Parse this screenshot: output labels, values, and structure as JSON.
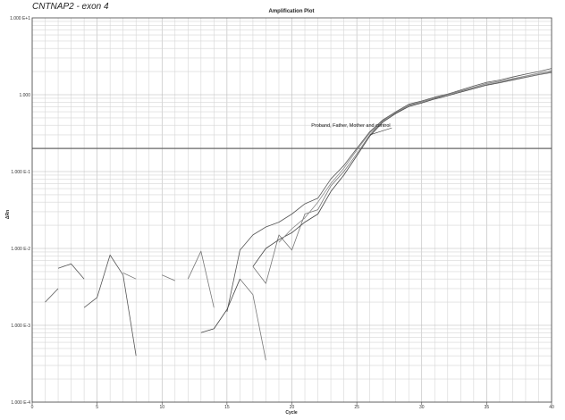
{
  "figure_title": "CNTNAP2 - exon 4",
  "chart_data": {
    "type": "line",
    "title": "Amplification Plot",
    "xlabel": "Cycle",
    "ylabel": "ΔRn",
    "xlim": [
      0,
      40
    ],
    "ylim": [
      0.0001,
      10
    ],
    "yscale": "log",
    "grid": true,
    "x_ticks": [
      0,
      5,
      10,
      15,
      20,
      25,
      30,
      35,
      40
    ],
    "x_tick_labels": [
      "0",
      "5",
      "10",
      "15",
      "20",
      "25",
      "30",
      "35",
      "40"
    ],
    "y_ticks": [
      10,
      1,
      0.1,
      0.01,
      0.001,
      0.0001
    ],
    "y_tick_labels": [
      "1.000 E+1",
      "1.000",
      "1.000 E-1",
      "1.000 E-2",
      "1.000 E-3",
      "1.000 E-4"
    ],
    "threshold": 0.2,
    "annotation": {
      "text": "Proband, Father, Mother and control",
      "points_to": [
        26,
        0.3
      ],
      "text_at": [
        21.5,
        0.38
      ]
    },
    "series": [
      {
        "color": "#555555",
        "segments": [
          [
            [
              1,
              0.002
            ],
            [
              2,
              0.003
            ]
          ],
          [
            [
              2,
              0.0055
            ],
            [
              3,
              0.0063
            ],
            [
              4,
              0.004
            ]
          ],
          [
            [
              4,
              0.0017
            ],
            [
              5,
              0.0023
            ],
            [
              6,
              0.0082
            ],
            [
              7,
              0.0045
            ],
            [
              8,
              0.0004
            ]
          ],
          [
            [
              15,
              0.0015
            ],
            [
              16,
              0.0095
            ],
            [
              17,
              0.015
            ],
            [
              18,
              0.019
            ],
            [
              19,
              0.022
            ],
            [
              20,
              0.028
            ],
            [
              21,
              0.038
            ],
            [
              22,
              0.045
            ],
            [
              23,
              0.08
            ],
            [
              24,
              0.12
            ],
            [
              25,
              0.2
            ],
            [
              26,
              0.33
            ],
            [
              27,
              0.47
            ],
            [
              28,
              0.6
            ],
            [
              29,
              0.75
            ],
            [
              30,
              0.83
            ],
            [
              31,
              0.93
            ],
            [
              32,
              1.02
            ],
            [
              33,
              1.15
            ],
            [
              34,
              1.3
            ],
            [
              35,
              1.45
            ],
            [
              36,
              1.55
            ],
            [
              37,
              1.7
            ],
            [
              38,
              1.85
            ],
            [
              39,
              2.0
            ],
            [
              40,
              2.2
            ]
          ]
        ]
      },
      {
        "color": "#777777",
        "segments": [
          [
            [
              7,
              0.0048
            ],
            [
              8,
              0.004
            ]
          ],
          [
            [
              10,
              0.0045
            ],
            [
              11,
              0.0038
            ]
          ],
          [
            [
              12,
              0.004
            ],
            [
              13,
              0.0092
            ],
            [
              14,
              0.0017
            ]
          ],
          [
            [
              16,
              0.004
            ],
            [
              17,
              0.0025
            ],
            [
              18,
              0.00035
            ]
          ],
          [
            [
              17,
              0.0058
            ],
            [
              18,
              0.0035
            ],
            [
              19,
              0.015
            ],
            [
              20,
              0.0095
            ],
            [
              21,
              0.028
            ],
            [
              22,
              0.032
            ],
            [
              23,
              0.065
            ],
            [
              24,
              0.1
            ],
            [
              25,
              0.17
            ],
            [
              26,
              0.3
            ],
            [
              27,
              0.46
            ],
            [
              28,
              0.58
            ],
            [
              29,
              0.72
            ],
            [
              30,
              0.8
            ],
            [
              31,
              0.9
            ],
            [
              32,
              1.0
            ],
            [
              33,
              1.12
            ],
            [
              34,
              1.25
            ],
            [
              35,
              1.4
            ],
            [
              36,
              1.5
            ],
            [
              37,
              1.62
            ],
            [
              38,
              1.75
            ],
            [
              39,
              1.9
            ],
            [
              40,
              2.05
            ]
          ]
        ]
      },
      {
        "color": "#444444",
        "segments": [
          [
            [
              13,
              0.0008
            ],
            [
              14,
              0.0009
            ],
            [
              15,
              0.0016
            ],
            [
              16,
              0.004
            ]
          ],
          [
            [
              17,
              0.0058
            ],
            [
              18,
              0.01
            ],
            [
              19,
              0.013
            ],
            [
              20,
              0.016
            ],
            [
              21,
              0.022
            ],
            [
              22,
              0.028
            ],
            [
              23,
              0.055
            ],
            [
              24,
              0.09
            ],
            [
              25,
              0.16
            ],
            [
              26,
              0.29
            ],
            [
              27,
              0.44
            ],
            [
              28,
              0.57
            ],
            [
              29,
              0.7
            ],
            [
              30,
              0.78
            ],
            [
              31,
              0.88
            ],
            [
              32,
              0.97
            ],
            [
              33,
              1.08
            ],
            [
              34,
              1.2
            ],
            [
              35,
              1.33
            ],
            [
              36,
              1.43
            ],
            [
              37,
              1.55
            ],
            [
              38,
              1.68
            ],
            [
              39,
              1.82
            ],
            [
              40,
              1.95
            ]
          ]
        ]
      },
      {
        "color": "#888888",
        "segments": [
          [
            [
              19,
              0.012
            ],
            [
              20,
              0.018
            ],
            [
              21,
              0.025
            ],
            [
              22,
              0.04
            ],
            [
              23,
              0.07
            ],
            [
              24,
              0.11
            ],
            [
              25,
              0.19
            ],
            [
              26,
              0.32
            ],
            [
              27,
              0.45
            ],
            [
              28,
              0.59
            ],
            [
              29,
              0.73
            ],
            [
              30,
              0.81
            ],
            [
              31,
              0.91
            ],
            [
              32,
              1.0
            ],
            [
              33,
              1.1
            ],
            [
              34,
              1.22
            ],
            [
              35,
              1.36
            ],
            [
              36,
              1.46
            ],
            [
              37,
              1.58
            ],
            [
              38,
              1.7
            ],
            [
              39,
              1.84
            ],
            [
              40,
              1.98
            ]
          ]
        ]
      }
    ]
  }
}
